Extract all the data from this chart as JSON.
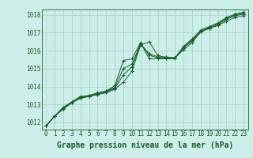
{
  "title": "Graphe pression niveau de la mer (hPa)",
  "bg_color": "#cceee8",
  "grid_color": "#aad4cc",
  "line_color": "#1a5c2a",
  "xlim": [
    -0.5,
    23.5
  ],
  "ylim": [
    1011.6,
    1018.3
  ],
  "xticks": [
    0,
    1,
    2,
    3,
    4,
    5,
    6,
    7,
    8,
    9,
    10,
    11,
    12,
    13,
    14,
    15,
    16,
    17,
    18,
    19,
    20,
    21,
    22,
    23
  ],
  "yticks": [
    1012,
    1013,
    1014,
    1015,
    1016,
    1017,
    1018
  ],
  "series": [
    [
      1011.8,
      1012.35,
      1012.75,
      1013.1,
      1013.35,
      1013.45,
      1013.55,
      1013.65,
      1013.85,
      1014.25,
      1014.85,
      1016.3,
      1016.5,
      1015.75,
      1015.6,
      1015.6,
      1016.05,
      1016.45,
      1017.05,
      1017.25,
      1017.4,
      1017.65,
      1017.85,
      1017.95
    ],
    [
      1011.8,
      1012.35,
      1012.75,
      1013.1,
      1013.35,
      1013.45,
      1013.6,
      1013.7,
      1013.9,
      1014.65,
      1015.1,
      1016.35,
      1015.85,
      1015.65,
      1015.65,
      1015.6,
      1016.15,
      1016.55,
      1017.05,
      1017.25,
      1017.45,
      1017.75,
      1017.95,
      1018.05
    ],
    [
      1011.8,
      1012.35,
      1012.8,
      1013.1,
      1013.4,
      1013.5,
      1013.6,
      1013.75,
      1013.95,
      1015.0,
      1015.25,
      1016.4,
      1015.75,
      1015.6,
      1015.6,
      1015.6,
      1016.2,
      1016.6,
      1017.1,
      1017.3,
      1017.5,
      1017.8,
      1018.0,
      1018.1
    ],
    [
      1011.8,
      1012.35,
      1012.85,
      1013.15,
      1013.45,
      1013.5,
      1013.65,
      1013.75,
      1014.05,
      1015.45,
      1015.55,
      1016.45,
      1015.55,
      1015.55,
      1015.55,
      1015.55,
      1016.25,
      1016.65,
      1017.15,
      1017.35,
      1017.55,
      1017.85,
      1018.05,
      1018.15
    ]
  ],
  "title_fontsize": 7,
  "tick_fontsize": 5.5
}
